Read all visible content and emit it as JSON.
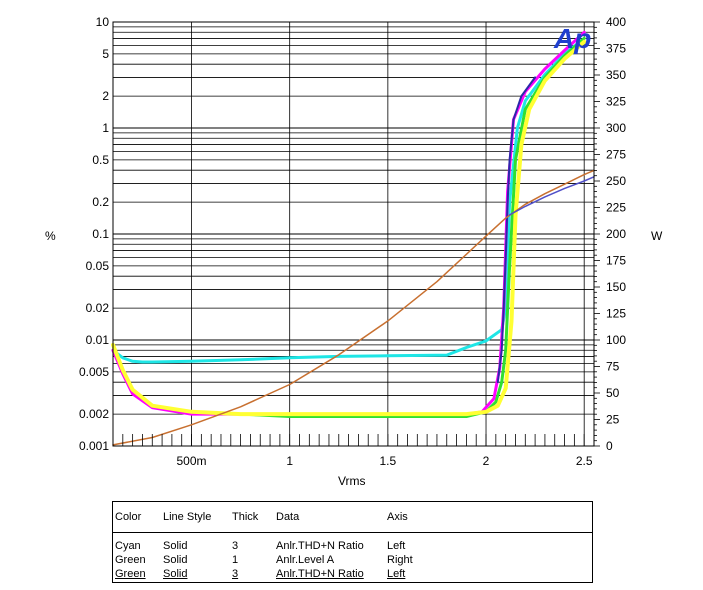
{
  "chart_data": {
    "type": "line",
    "xlabel": "Vrms",
    "ylabel_left": "%",
    "ylabel_right": "W",
    "xlim": [
      0.1,
      2.55
    ],
    "ylim_left": [
      0.001,
      10
    ],
    "ylim_left_scale": "log",
    "ylim_right": [
      0,
      400
    ],
    "grid": true,
    "logo_text": "Ap",
    "x_ticks": [
      {
        "value": 0.5,
        "label": "500m"
      },
      {
        "value": 1,
        "label": "1"
      },
      {
        "value": 1.5,
        "label": "1.5"
      },
      {
        "value": 2,
        "label": "2"
      },
      {
        "value": 2.5,
        "label": "2.5"
      }
    ],
    "y_left_ticks": [
      {
        "value": 10,
        "label": "10"
      },
      {
        "value": 5,
        "label": "5"
      },
      {
        "value": 2,
        "label": "2"
      },
      {
        "value": 1,
        "label": "1"
      },
      {
        "value": 0.5,
        "label": "0.5"
      },
      {
        "value": 0.2,
        "label": "0.2"
      },
      {
        "value": 0.1,
        "label": "0.1"
      },
      {
        "value": 0.05,
        "label": "0.05"
      },
      {
        "value": 0.02,
        "label": "0.02"
      },
      {
        "value": 0.01,
        "label": "0.01"
      },
      {
        "value": 0.005,
        "label": "0.005"
      },
      {
        "value": 0.002,
        "label": "0.002"
      },
      {
        "value": 0.001,
        "label": "0.001"
      }
    ],
    "y_right_ticks": [
      0,
      25,
      50,
      75,
      100,
      125,
      150,
      175,
      200,
      225,
      250,
      275,
      300,
      325,
      350,
      375,
      400
    ],
    "series": [
      {
        "color": "#1ee6e6",
        "width": 3,
        "axis": "left",
        "points": [
          [
            0.1,
            0.008
          ],
          [
            0.15,
            0.0068
          ],
          [
            0.2,
            0.0063
          ],
          [
            0.25,
            0.0062
          ],
          [
            0.3,
            0.0062
          ],
          [
            0.5,
            0.0063
          ],
          [
            0.75,
            0.0065
          ],
          [
            1,
            0.0068
          ],
          [
            1.25,
            0.007
          ],
          [
            1.5,
            0.0071
          ],
          [
            1.8,
            0.0072
          ],
          [
            1.9,
            0.0085
          ],
          [
            2,
            0.0098
          ],
          [
            2.08,
            0.0125
          ],
          [
            2.1,
            0.02
          ],
          [
            2.12,
            0.2
          ],
          [
            2.16,
            1.0
          ],
          [
            2.2,
            1.8
          ],
          [
            2.3,
            3.2
          ],
          [
            2.4,
            5.0
          ],
          [
            2.5,
            7.0
          ]
        ]
      },
      {
        "color": "#30e030",
        "width": 3,
        "axis": "left",
        "points": [
          [
            0.1,
            0.008
          ],
          [
            0.15,
            0.005
          ],
          [
            0.2,
            0.0032
          ],
          [
            0.3,
            0.0024
          ],
          [
            0.5,
            0.0021
          ],
          [
            0.75,
            0.002
          ],
          [
            1,
            0.0019
          ],
          [
            1.25,
            0.0019
          ],
          [
            1.5,
            0.0019
          ],
          [
            1.75,
            0.0019
          ],
          [
            1.9,
            0.0019
          ],
          [
            2,
            0.0021
          ],
          [
            2.05,
            0.0026
          ],
          [
            2.08,
            0.004
          ],
          [
            2.1,
            0.008
          ],
          [
            2.12,
            0.05
          ],
          [
            2.15,
            0.5
          ],
          [
            2.2,
            1.5
          ],
          [
            2.3,
            3.0
          ],
          [
            2.4,
            4.8
          ],
          [
            2.5,
            7.0
          ]
        ]
      },
      {
        "color": "#ff00ff",
        "width": 3,
        "axis": "left",
        "points": [
          [
            0.1,
            0.008
          ],
          [
            0.15,
            0.0048
          ],
          [
            0.2,
            0.0031
          ],
          [
            0.3,
            0.0023
          ],
          [
            0.5,
            0.002
          ],
          [
            0.75,
            0.002
          ],
          [
            1,
            0.002
          ],
          [
            1.25,
            0.002
          ],
          [
            1.5,
            0.002
          ],
          [
            1.75,
            0.002
          ],
          [
            1.9,
            0.002
          ],
          [
            1.98,
            0.0021
          ],
          [
            2.04,
            0.0028
          ],
          [
            2.07,
            0.0055
          ],
          [
            2.09,
            0.02
          ],
          [
            2.11,
            0.25
          ],
          [
            2.14,
            1.2
          ],
          [
            2.2,
            2.2
          ],
          [
            2.3,
            3.6
          ],
          [
            2.4,
            5.4
          ],
          [
            2.5,
            8.0
          ]
        ]
      },
      {
        "color": "#2a2aa8",
        "width": 2,
        "axis": "left",
        "points": [
          [
            2.06,
            0.004
          ],
          [
            2.08,
            0.008
          ],
          [
            2.09,
            0.02
          ],
          [
            2.1,
            0.06
          ],
          [
            2.11,
            0.2
          ],
          [
            2.12,
            0.5
          ],
          [
            2.14,
            1.2
          ],
          [
            2.18,
            2.0
          ],
          [
            2.25,
            3.0
          ]
        ]
      },
      {
        "color": "#ffff33",
        "width": 4,
        "axis": "left",
        "points": [
          [
            0.1,
            0.009
          ],
          [
            0.15,
            0.0052
          ],
          [
            0.2,
            0.0034
          ],
          [
            0.3,
            0.0024
          ],
          [
            0.5,
            0.0021
          ],
          [
            0.75,
            0.002
          ],
          [
            1,
            0.002
          ],
          [
            1.25,
            0.002
          ],
          [
            1.5,
            0.002
          ],
          [
            1.75,
            0.002
          ],
          [
            1.9,
            0.002
          ],
          [
            2,
            0.0021
          ],
          [
            2.06,
            0.0024
          ],
          [
            2.1,
            0.0035
          ],
          [
            2.13,
            0.015
          ],
          [
            2.15,
            0.15
          ],
          [
            2.18,
            0.7
          ],
          [
            2.22,
            1.5
          ],
          [
            2.3,
            2.8
          ],
          [
            2.4,
            4.5
          ],
          [
            2.5,
            6.5
          ]
        ]
      },
      {
        "color": "#c87030",
        "width": 1.5,
        "axis": "right",
        "points": [
          [
            0.1,
            1
          ],
          [
            0.3,
            8
          ],
          [
            0.5,
            20
          ],
          [
            0.75,
            37
          ],
          [
            1,
            58
          ],
          [
            1.25,
            86
          ],
          [
            1.5,
            118
          ],
          [
            1.75,
            155
          ],
          [
            2,
            198
          ],
          [
            2.1,
            215
          ],
          [
            2.2,
            228
          ],
          [
            2.3,
            238
          ],
          [
            2.4,
            247
          ],
          [
            2.5,
            256
          ],
          [
            2.55,
            260
          ]
        ]
      },
      {
        "color": "#5050c8",
        "width": 1.5,
        "axis": "right",
        "points": [
          [
            2.12,
            218
          ],
          [
            2.2,
            226
          ],
          [
            2.3,
            235
          ],
          [
            2.4,
            243
          ],
          [
            2.5,
            250
          ],
          [
            2.55,
            254
          ]
        ]
      }
    ]
  },
  "legend": {
    "headers": {
      "color": "Color",
      "line_style": "Line Style",
      "thick": "Thick",
      "data": "Data",
      "axis": "Axis"
    },
    "rows": [
      {
        "color": "Cyan",
        "line_style": "Solid",
        "thick": "3",
        "data": "Anlr.THD+N Ratio",
        "axis": "Left"
      },
      {
        "color": "Green",
        "line_style": "Solid",
        "thick": "1",
        "data": "Anlr.Level A",
        "axis": "Right"
      },
      {
        "color": "Green",
        "line_style": "Solid",
        "thick": "3",
        "data": "Anlr.THD+N Ratio",
        "axis": "Left"
      }
    ]
  }
}
